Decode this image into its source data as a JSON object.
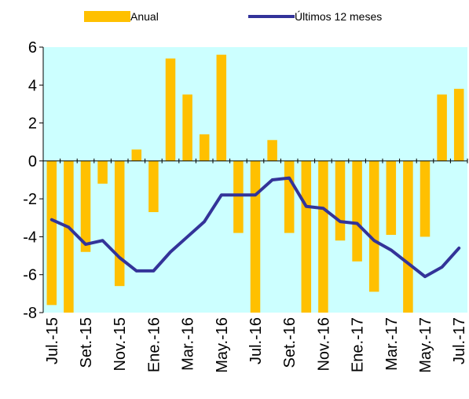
{
  "chart_data": {
    "type": "bar+line",
    "title": "",
    "xlabel": "",
    "ylabel": "",
    "ylim": [
      -8,
      6
    ],
    "yticks": [
      -8,
      -6,
      -4,
      -2,
      0,
      2,
      4,
      6
    ],
    "grid": false,
    "legend_position": "top",
    "plot_background": "#ccffff",
    "categories": [
      "Jul.-15",
      "Ago.-15",
      "Set.-15",
      "Oct.-15",
      "Nov.-15",
      "Dic.-15",
      "Ene.-16",
      "Feb.-16",
      "Mar.-16",
      "Abr.-16",
      "May.-16",
      "Jun.-16",
      "Jul.-16",
      "Ago.-16",
      "Set.-16",
      "Oct.-16",
      "Nov.-16",
      "Dic.-16",
      "Ene.-17",
      "Feb.-17",
      "Mar.-17",
      "Abr.-17",
      "May.-17",
      "Jun.-17",
      "Jul.-17"
    ],
    "tick_labels": [
      "Jul.-15",
      "Set.-15",
      "Nov.-15",
      "Ene.-16",
      "Mar.-16",
      "May.-16",
      "Jul.-16",
      "Set.-16",
      "Nov.-16",
      "Ene.-17",
      "Mar.-17",
      "May.-17",
      "Jul.-17"
    ],
    "series": [
      {
        "name": "Anual",
        "kind": "bar",
        "color": "#ffc000",
        "values": [
          -7.6,
          -8.1,
          -4.8,
          -1.2,
          -6.6,
          0.6,
          -2.7,
          5.4,
          3.5,
          1.4,
          5.6,
          -3.8,
          -8.0,
          1.1,
          -3.8,
          -8.1,
          -8.1,
          -4.2,
          -5.3,
          -6.9,
          -3.9,
          -8.0,
          -4.0,
          3.5,
          3.8
        ]
      },
      {
        "name": "Últimos 12 meses",
        "kind": "line",
        "color": "#333399",
        "values": [
          -3.1,
          -3.5,
          -4.4,
          -4.2,
          -5.1,
          -5.8,
          -5.8,
          -4.8,
          -4.0,
          -3.2,
          -1.8,
          -1.8,
          -1.8,
          -1.0,
          -0.9,
          -2.4,
          -2.5,
          -3.2,
          -3.3,
          -4.2,
          -4.7,
          -5.4,
          -6.1,
          -5.6,
          -4.6
        ]
      }
    ]
  }
}
